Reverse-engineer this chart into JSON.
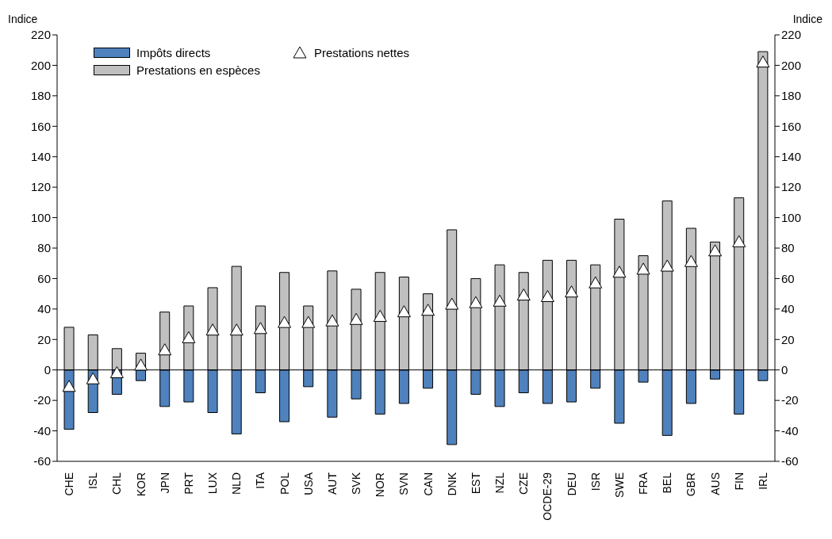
{
  "chart_data": {
    "type": "bar",
    "stacked": true,
    "ylabel": "Indice",
    "y2label": "Indice",
    "categories": [
      "CHE",
      "ISL",
      "CHL",
      "KOR",
      "JPN",
      "PRT",
      "LUX",
      "NLD",
      "ITA",
      "POL",
      "USA",
      "AUT",
      "SVK",
      "NOR",
      "SVN",
      "CAN",
      "DNK",
      "EST",
      "NZL",
      "CZE",
      "OCDE-29",
      "DEU",
      "ISR",
      "SWE",
      "FRA",
      "BEL",
      "GBR",
      "AUS",
      "FIN",
      "IRL"
    ],
    "series": [
      {
        "name": "Impôts directs",
        "color": "#4f81bd",
        "values": [
          -39,
          -28,
          -16,
          -7,
          -24,
          -21,
          -28,
          -42,
          -15,
          -34,
          -11,
          -31,
          -19,
          -29,
          -22,
          -12,
          -49,
          -16,
          -24,
          -15,
          -22,
          -21,
          -12,
          -35,
          -8,
          -43,
          -22,
          -6,
          -29,
          -7
        ]
      },
      {
        "name": "Prestations en espèces",
        "color": "#c0c0c0",
        "values": [
          28,
          23,
          14,
          11,
          38,
          42,
          54,
          68,
          42,
          64,
          42,
          65,
          53,
          64,
          61,
          50,
          92,
          60,
          69,
          64,
          72,
          72,
          69,
          99,
          75,
          111,
          93,
          84,
          113,
          209
        ]
      },
      {
        "name": "Prestations nettes",
        "type": "scatter",
        "marker": "triangle",
        "color": "#ffffff",
        "values": [
          -11,
          -6,
          -2,
          3,
          13,
          21,
          26,
          26,
          27,
          31,
          31,
          32,
          33,
          35,
          38,
          39,
          43,
          44,
          45,
          49,
          48,
          51,
          57,
          64,
          66,
          68,
          71,
          78,
          84,
          202
        ]
      }
    ],
    "ylim": [
      -60,
      220
    ],
    "yticks": [
      -60,
      -40,
      -20,
      0,
      20,
      40,
      60,
      80,
      100,
      120,
      140,
      160,
      180,
      200,
      220
    ],
    "y2lim": [
      -60,
      220
    ],
    "y2ticks": [
      -60,
      -40,
      -20,
      0,
      20,
      40,
      60,
      80,
      100,
      120,
      140,
      160,
      180,
      200,
      220
    ],
    "legend": "top left"
  }
}
